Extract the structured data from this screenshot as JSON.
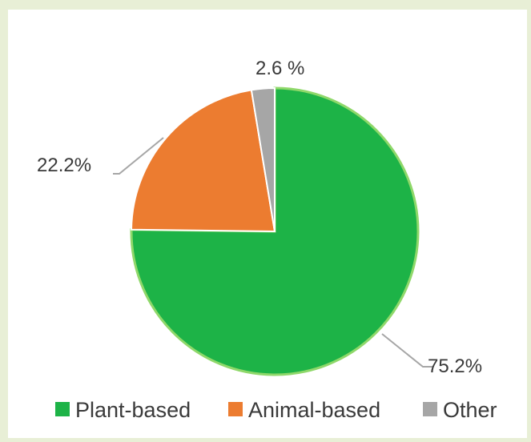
{
  "chart_data": {
    "type": "pie",
    "categories": [
      "Plant-based",
      "Animal-based",
      "Other"
    ],
    "values": [
      75.2,
      22.2,
      2.6
    ],
    "data_labels": [
      "75.2%",
      "22.2%",
      "2.6 %"
    ],
    "colors": [
      "#1db347",
      "#ec7c30",
      "#a6a6a6"
    ],
    "legend": {
      "position": "bottom",
      "items": [
        "Plant-based",
        "Animal-based",
        "Other"
      ]
    }
  }
}
